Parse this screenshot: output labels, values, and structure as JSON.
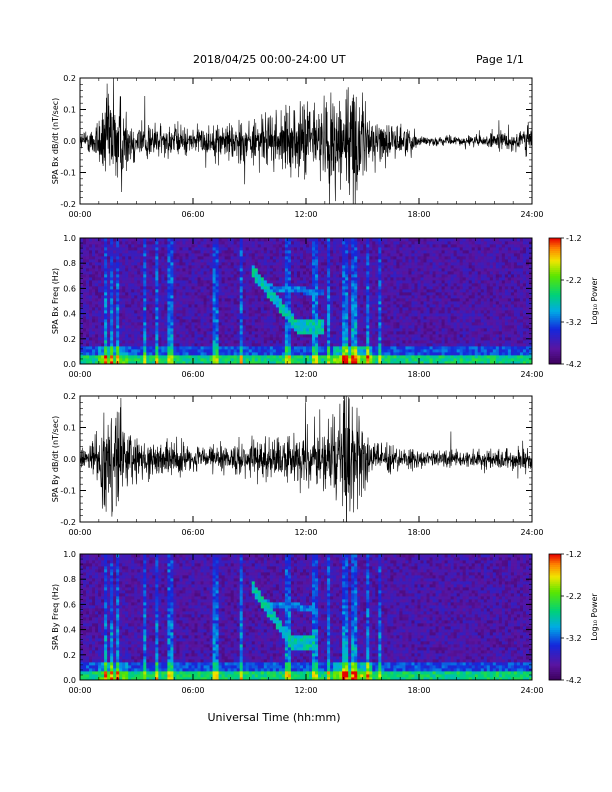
{
  "header": {
    "title": "2018/04/25  00:00-24:00 UT",
    "page": "Page 1/1"
  },
  "chart_data": [
    {
      "type": "line",
      "ylabel": "SPA Bx dB/dt (nT/sec)",
      "xlim": [
        0,
        24
      ],
      "ylim": [
        -0.2,
        0.2
      ],
      "x_ticks": [
        "00:00",
        "06:00",
        "12:00",
        "18:00",
        "24:00"
      ],
      "y_ticks": [
        "-0.2",
        "-0.1",
        "0.0",
        "0.1",
        "0.2"
      ],
      "series": [
        {
          "x": [
            0,
            0.5,
            1,
            1.5,
            2,
            2.5,
            3,
            3.5,
            4,
            4.5,
            5,
            5.5,
            6,
            6.5,
            7,
            7.5,
            8,
            8.5,
            9,
            9.5,
            10,
            10.5,
            11,
            11.5,
            12,
            12.5,
            13,
            13.5,
            14,
            14.5,
            15,
            15.5,
            16,
            16.5,
            17,
            17.5,
            18,
            18.5,
            19,
            19.5,
            20,
            20.5,
            21,
            21.5,
            22,
            22.5,
            23,
            23.5,
            24
          ],
          "amplitude": [
            0.03,
            0.04,
            0.09,
            0.18,
            0.2,
            0.1,
            0.07,
            0.08,
            0.06,
            0.05,
            0.06,
            0.05,
            0.04,
            0.05,
            0.05,
            0.06,
            0.07,
            0.08,
            0.07,
            0.08,
            0.09,
            0.1,
            0.1,
            0.1,
            0.15,
            0.12,
            0.14,
            0.18,
            0.2,
            0.2,
            0.15,
            0.08,
            0.07,
            0.06,
            0.05,
            0.05,
            0.02,
            0.015,
            0.015,
            0.015,
            0.015,
            0.02,
            0.02,
            0.02,
            0.03,
            0.03,
            0.04,
            0.05,
            0.05
          ]
        }
      ]
    },
    {
      "type": "heatmap",
      "ylabel": "SPA Bx Freq (Hz)",
      "xlim": [
        0,
        24
      ],
      "ylim": [
        0.0,
        1.0
      ],
      "x_ticks": [
        "00:00",
        "06:00",
        "12:00",
        "18:00",
        "24:00"
      ],
      "y_ticks": [
        "0.0",
        "0.2",
        "0.4",
        "0.6",
        "0.8",
        "1.0"
      ],
      "colorbar": {
        "label": "Log₁₀ Power",
        "ticks": [
          "-4.2",
          "-3.2",
          "-2.2",
          "-1.2"
        ],
        "range": [
          -4.2,
          -1.2
        ]
      },
      "features": {
        "background_log_power": -4.0,
        "low_freq_band_log_power": -2.8,
        "vertical_streaks_hours": [
          1.4,
          1.7,
          2.0,
          3.4,
          4.1,
          4.8,
          7.2,
          8.6,
          11.0,
          12.5,
          13.2,
          14.1,
          14.6,
          15.3,
          15.9
        ],
        "dispersed_event": {
          "start_hour": 9.1,
          "end_hour": 13.0,
          "freq_high": 0.75,
          "freq_low": 0.3,
          "log_power": -3.0
        }
      }
    },
    {
      "type": "line",
      "ylabel": "SPA By dB/dt (nT/sec)",
      "xlim": [
        0,
        24
      ],
      "ylim": [
        -0.2,
        0.2
      ],
      "x_ticks": [
        "00:00",
        "06:00",
        "12:00",
        "18:00",
        "24:00"
      ],
      "y_ticks": [
        "-0.2",
        "-0.1",
        "0.0",
        "0.1",
        "0.2"
      ],
      "series": [
        {
          "x": [
            0,
            0.5,
            1,
            1.5,
            2,
            2.5,
            3,
            3.5,
            4,
            4.5,
            5,
            5.5,
            6,
            6.5,
            7,
            7.5,
            8,
            8.5,
            9,
            9.5,
            10,
            10.5,
            11,
            11.5,
            12,
            12.5,
            13,
            13.5,
            14,
            14.5,
            15,
            15.5,
            16,
            16.5,
            17,
            17.5,
            18,
            18.5,
            19,
            19.5,
            20,
            20.5,
            21,
            21.5,
            22,
            22.5,
            23,
            23.5,
            24
          ],
          "amplitude": [
            0.03,
            0.04,
            0.1,
            0.18,
            0.2,
            0.1,
            0.07,
            0.06,
            0.06,
            0.05,
            0.06,
            0.05,
            0.04,
            0.04,
            0.04,
            0.05,
            0.05,
            0.06,
            0.05,
            0.06,
            0.07,
            0.07,
            0.07,
            0.07,
            0.1,
            0.09,
            0.1,
            0.14,
            0.2,
            0.2,
            0.12,
            0.06,
            0.05,
            0.05,
            0.04,
            0.04,
            0.03,
            0.03,
            0.03,
            0.03,
            0.03,
            0.03,
            0.03,
            0.03,
            0.03,
            0.04,
            0.04,
            0.05,
            0.05
          ]
        }
      ]
    },
    {
      "type": "heatmap",
      "ylabel": "SPA By Freq (Hz)",
      "xlim": [
        0,
        24
      ],
      "ylim": [
        0.0,
        1.0
      ],
      "x_ticks": [
        "00:00",
        "06:00",
        "12:00",
        "18:00",
        "24:00"
      ],
      "y_ticks": [
        "0.0",
        "0.2",
        "0.4",
        "0.6",
        "0.8",
        "1.0"
      ],
      "colorbar": {
        "label": "Log₁₀ Power",
        "ticks": [
          "-4.2",
          "-3.2",
          "-2.2",
          "-1.2"
        ],
        "range": [
          -4.2,
          -1.2
        ]
      },
      "features": {
        "background_log_power": -4.0,
        "low_freq_band_log_power": -2.8,
        "vertical_streaks_hours": [
          1.4,
          1.7,
          2.0,
          3.4,
          4.1,
          4.8,
          7.2,
          8.6,
          11.0,
          12.5,
          13.2,
          14.1,
          14.6,
          15.3,
          15.9
        ],
        "dispersed_event": {
          "start_hour": 9.1,
          "end_hour": 12.5,
          "freq_high": 0.75,
          "freq_low": 0.3,
          "log_power": -3.0
        }
      }
    }
  ],
  "xlabel": "Universal Time (hh:mm)"
}
